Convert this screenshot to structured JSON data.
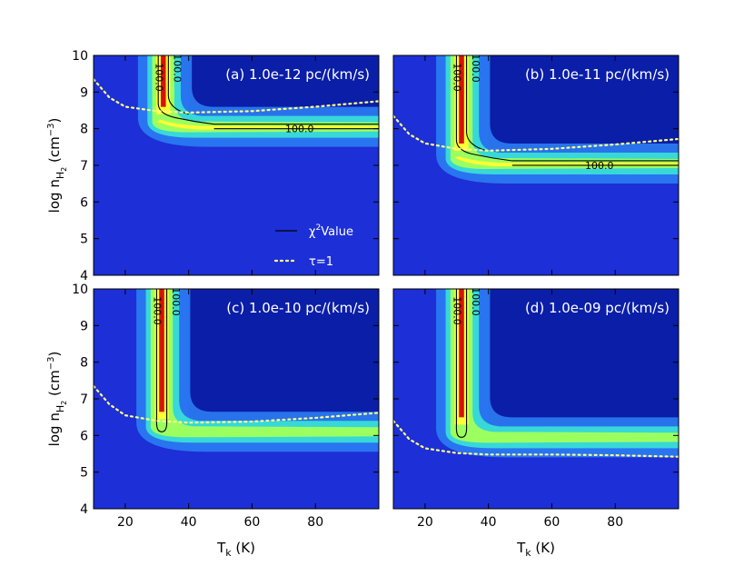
{
  "chart_data": {
    "type": "heatmap",
    "colors": {
      "background": "#1d2fd6",
      "dark_region": "#0a1ea8",
      "halo": "#2b7cf3",
      "cyan": "#38d8d8",
      "green": "#9cff60",
      "yellow": "#ffff33",
      "red": "#d81010",
      "contour": "#000000",
      "tau_line": "#ffff88"
    },
    "xlabel": "T",
    "xlabel_sub": "k",
    "xlabel_unit": " (K)",
    "ylabel_main": "log n",
    "ylabel_sub": "H",
    "ylabel_subsub": "2",
    "ylabel_unit": " (cm",
    "ylabel_sup": "−3",
    "ylabel_close": ")",
    "xlim": [
      10,
      100
    ],
    "ylim": [
      4,
      10
    ],
    "xticks": [
      20,
      40,
      60,
      80
    ],
    "yticks": [
      4,
      5,
      6,
      7,
      8,
      9,
      10
    ],
    "legend": {
      "chi2_label_pre": "χ",
      "chi2_label_sup": "2",
      "chi2_label_post": "Value",
      "tau_label": "τ=1"
    },
    "panels": [
      {
        "title": "(a) 1.0e-12 pc/(km/s)",
        "ridge_T": 32,
        "floor_logn": 8.05,
        "contour_label": "100.0",
        "tau": [
          [
            10,
            9.35
          ],
          [
            15,
            8.85
          ],
          [
            20,
            8.6
          ],
          [
            30,
            8.48
          ],
          [
            40,
            8.44
          ],
          [
            60,
            8.48
          ],
          [
            80,
            8.6
          ],
          [
            100,
            8.75
          ]
        ]
      },
      {
        "title": "(b) 1.0e-11 pc/(km/s)",
        "ridge_T": 31.5,
        "floor_logn": 7.05,
        "contour_label": "100.0",
        "tau": [
          [
            10,
            8.35
          ],
          [
            15,
            7.85
          ],
          [
            20,
            7.6
          ],
          [
            30,
            7.45
          ],
          [
            40,
            7.4
          ],
          [
            60,
            7.45
          ],
          [
            80,
            7.57
          ],
          [
            100,
            7.72
          ]
        ]
      },
      {
        "title": "(c) 1.0e-10 pc/(km/s)",
        "ridge_T": 31.5,
        "floor_logn": 6.1,
        "contour_label": "100.0",
        "tau": [
          [
            10,
            7.35
          ],
          [
            15,
            6.85
          ],
          [
            20,
            6.55
          ],
          [
            30,
            6.4
          ],
          [
            40,
            6.35
          ],
          [
            60,
            6.38
          ],
          [
            80,
            6.48
          ],
          [
            100,
            6.62
          ]
        ]
      },
      {
        "title": "(d) 1.0e-09 pc/(km/s)",
        "ridge_T": 31.5,
        "floor_logn": 5.95,
        "contour_label": "100.0",
        "tau": [
          [
            10,
            6.4
          ],
          [
            15,
            5.9
          ],
          [
            20,
            5.65
          ],
          [
            30,
            5.52
          ],
          [
            40,
            5.48
          ],
          [
            60,
            5.48
          ],
          [
            80,
            5.46
          ],
          [
            100,
            5.42
          ]
        ]
      }
    ]
  }
}
